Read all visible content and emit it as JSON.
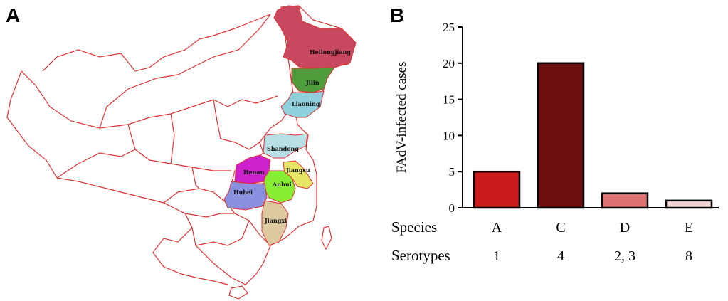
{
  "panels": {
    "a_label": "A",
    "b_label": "B"
  },
  "map": {
    "provinces": [
      {
        "name": "Heilongjiang",
        "color": "#c8485f"
      },
      {
        "name": "Jilin",
        "color": "#4f9c3c"
      },
      {
        "name": "Liaoning",
        "color": "#8fd0dc"
      },
      {
        "name": "Shandong",
        "color": "#b8dfe5"
      },
      {
        "name": "Henan",
        "color": "#cc22cc"
      },
      {
        "name": "Jiangsu",
        "color": "#e6e566"
      },
      {
        "name": "Anhui",
        "color": "#88ee33"
      },
      {
        "name": "Hubei",
        "color": "#8a92e0"
      },
      {
        "name": "Jiangxi",
        "color": "#dcc9a0"
      }
    ],
    "outline_color": "#dd3333"
  },
  "chart_data": {
    "type": "bar",
    "categories": [
      "A",
      "C",
      "D",
      "E"
    ],
    "values": [
      5,
      20,
      2,
      1
    ],
    "colors": [
      "#cc1b1b",
      "#6e0f0f",
      "#de7272",
      "#f2d4d4"
    ],
    "ylabel": "FAdV-infected cases",
    "ylim": [
      0,
      25
    ],
    "yticks": [
      0,
      5,
      10,
      15,
      20,
      25
    ],
    "rows": [
      {
        "label": "Species",
        "values": [
          "A",
          "C",
          "D",
          "E"
        ]
      },
      {
        "label": "Serotypes",
        "values": [
          "1",
          "4",
          "2, 3",
          "8"
        ]
      }
    ]
  }
}
